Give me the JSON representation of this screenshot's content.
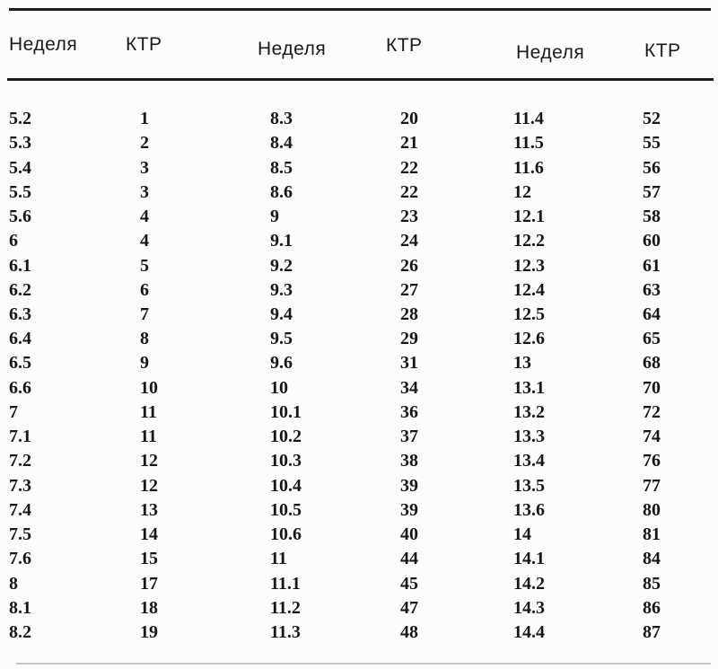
{
  "table": {
    "description": "Reference table of crown-rump length (KTR) by gestational week, three column pairs side by side",
    "headers": [
      "Неделя",
      "КТР",
      "Неделя",
      "КТР",
      "Неделя",
      "КТР"
    ],
    "header_week_label": "Неделя",
    "header_ktr_label": "КТР",
    "rows": [
      [
        "5.2",
        "1",
        "8.3",
        "20",
        "11.4",
        "52"
      ],
      [
        "5.3",
        "2",
        "8.4",
        "21",
        "11.5",
        "55"
      ],
      [
        "5.4",
        "3",
        "8.5",
        "22",
        "11.6",
        "56"
      ],
      [
        "5.5",
        "3",
        "8.6",
        "22",
        "12",
        "57"
      ],
      [
        "5.6",
        "4",
        "9",
        "23",
        "12.1",
        "58"
      ],
      [
        "6",
        "4",
        "9.1",
        "24",
        "12.2",
        "60"
      ],
      [
        "6.1",
        "5",
        "9.2",
        "26",
        "12.3",
        "61"
      ],
      [
        "6.2",
        "6",
        "9.3",
        "27",
        "12.4",
        "63"
      ],
      [
        "6.3",
        "7",
        "9.4",
        "28",
        "12.5",
        "64"
      ],
      [
        "6.4",
        "8",
        "9.5",
        "29",
        "12.6",
        "65"
      ],
      [
        "6.5",
        "9",
        "9.6",
        "31",
        "13",
        "68"
      ],
      [
        "6.6",
        "10",
        "10",
        "34",
        "13.1",
        "70"
      ],
      [
        "7",
        "11",
        "10.1",
        "36",
        "13.2",
        "72"
      ],
      [
        "7.1",
        "11",
        "10.2",
        "37",
        "13.3",
        "74"
      ],
      [
        "7.2",
        "12",
        "10.3",
        "38",
        "13.4",
        "76"
      ],
      [
        "7.3",
        "12",
        "10.4",
        "39",
        "13.5",
        "77"
      ],
      [
        "7.4",
        "13",
        "10.5",
        "39",
        "13.6",
        "80"
      ],
      [
        "7.5",
        "14",
        "10.6",
        "40",
        "14",
        "81"
      ],
      [
        "7.6",
        "15",
        "11",
        "44",
        "14.1",
        "84"
      ],
      [
        "8",
        "17",
        "11.1",
        "45",
        "14.2",
        "85"
      ],
      [
        "8.1",
        "18",
        "11.2",
        "47",
        "14.3",
        "86"
      ],
      [
        "8.2",
        "19",
        "11.3",
        "48",
        "14.4",
        "87"
      ]
    ]
  },
  "colors": {
    "background": "#fcfcfa",
    "text": "#161616",
    "rule": "#1c1c1c",
    "rule_faint": "#c6c6c4"
  }
}
